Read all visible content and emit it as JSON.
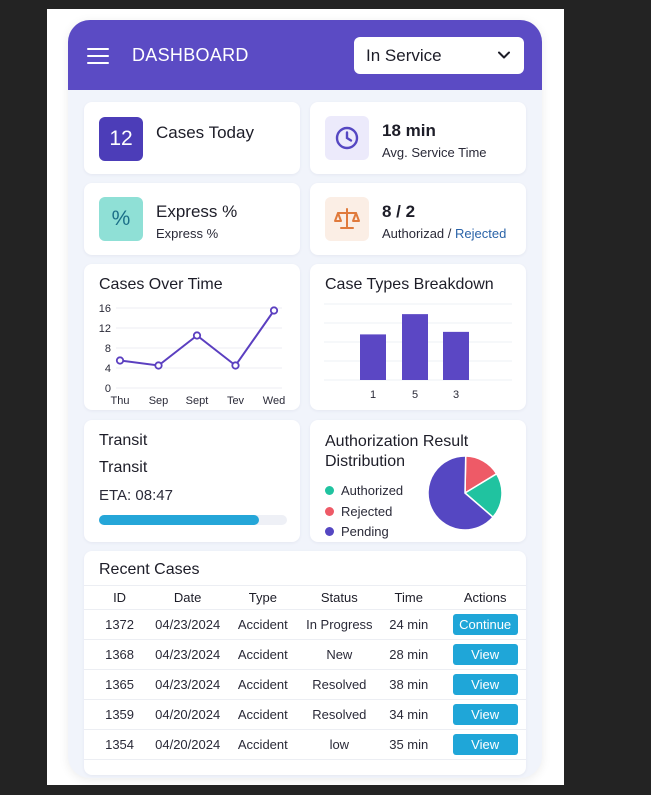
{
  "header": {
    "title": "DASHBOARD",
    "status_select": "In Service"
  },
  "stats": {
    "cases_today": {
      "value": "12",
      "label": "Cases Today"
    },
    "service_time": {
      "value": "18 min",
      "label": "Avg. Service Time"
    },
    "express": {
      "icon_text": "%",
      "value": "Express %",
      "label": "Express %"
    },
    "authorization": {
      "value": "8 / 2",
      "label_authorized": "Authorizad",
      "label_sep": " / ",
      "label_rejected": "Rejected"
    }
  },
  "cases_over_time": {
    "title": "Cases Over Time",
    "chart_data": {
      "type": "line",
      "title": "Cases Over Time",
      "categories": [
        "Thu",
        "Sep",
        "Sept",
        "Tev",
        "Wed"
      ],
      "values": [
        5.5,
        4.5,
        10.5,
        4.5,
        15.5
      ],
      "yticks": [
        0,
        4,
        8,
        12,
        16
      ],
      "ylim": [
        0,
        16
      ],
      "grid": true,
      "color": "#5b3fc0"
    }
  },
  "case_types": {
    "title": "Case Types Breakdown",
    "chart_data": {
      "type": "bar",
      "title": "Case Types Breakdown",
      "categories": [
        "1",
        "5",
        "3"
      ],
      "values": [
        9,
        13,
        9.5
      ],
      "ylim": [
        0,
        15
      ],
      "grid": true,
      "color": "#5b47c4"
    }
  },
  "transit": {
    "title": "Transit",
    "subtitle": "Transit",
    "eta": "ETA: 08:47",
    "progress": 0.85
  },
  "auth_distribution": {
    "title_line1": "Authorization Result",
    "title_line2": "Distribution",
    "chart_data": {
      "type": "pie",
      "labels": [
        "Authorized",
        "Rejected",
        "Pending"
      ],
      "values": [
        20,
        16,
        64
      ],
      "colors": [
        "#20c3a0",
        "#ee5a67",
        "#5547c2"
      ]
    },
    "legend": [
      {
        "label": "Authorized",
        "color": "#20c3a0"
      },
      {
        "label": "Rejected",
        "color": "#ee5a67"
      },
      {
        "label": "Pending",
        "color": "#5547c2"
      }
    ]
  },
  "recent_cases": {
    "title": "Recent Cases",
    "columns": [
      "ID",
      "Date",
      "Type",
      "Status",
      "Time",
      "Actions"
    ],
    "rows": [
      {
        "id": "1372",
        "date": "04/23/2024",
        "type": "Accident",
        "status": "In Progress",
        "time": "24 min",
        "action": "Continue"
      },
      {
        "id": "1368",
        "date": "04/23/2024",
        "type": "Accident",
        "status": "New",
        "time": "28 min",
        "action": "View"
      },
      {
        "id": "1365",
        "date": "04/23/2024",
        "type": "Accident",
        "status": "Resolved",
        "time": "38 min",
        "action": "View"
      },
      {
        "id": "1359",
        "date": "04/20/2024",
        "type": "Accident",
        "status": "Resolved",
        "time": "34 min",
        "action": "View"
      },
      {
        "id": "1354",
        "date": "04/20/2024",
        "type": "Accident",
        "status": "low",
        "time": "35 min",
        "action": "View"
      }
    ]
  }
}
